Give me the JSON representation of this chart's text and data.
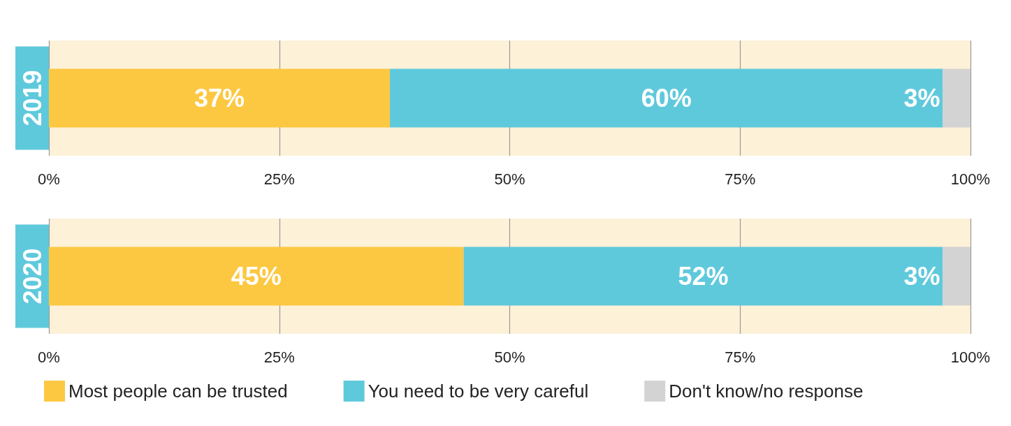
{
  "chart_data": [
    {
      "type": "bar",
      "orientation": "horizontal",
      "stacked": true,
      "categories": [
        "2019"
      ],
      "xlim": [
        0,
        100
      ],
      "xticks": [
        {
          "value": 0,
          "label": "0%"
        },
        {
          "value": 25,
          "label": "25%"
        },
        {
          "value": 50,
          "label": "50%"
        },
        {
          "value": 75,
          "label": "75%"
        },
        {
          "value": 100,
          "label": "100%"
        }
      ],
      "grid": "x",
      "legend": false,
      "series": [
        {
          "color": "#fdc841",
          "values": [
            37
          ],
          "value_labels": [
            "37%"
          ]
        },
        {
          "color": "#5fc9dc",
          "values": [
            60
          ],
          "value_labels": [
            "60%"
          ]
        },
        {
          "color": "#d3d3d3",
          "values": [
            3
          ],
          "value_labels": [
            "3%"
          ]
        }
      ]
    },
    {
      "type": "bar",
      "orientation": "horizontal",
      "stacked": true,
      "categories": [
        "2020"
      ],
      "xlim": [
        0,
        100
      ],
      "xticks": [
        {
          "value": 0,
          "label": "0%"
        },
        {
          "value": 25,
          "label": "25%"
        },
        {
          "value": 50,
          "label": "50%"
        },
        {
          "value": 75,
          "label": "75%"
        },
        {
          "value": 100,
          "label": "100%"
        }
      ],
      "grid": "x",
      "legend": "bottom",
      "series": [
        {
          "name": "Most people can be trusted",
          "color": "#fdc841",
          "values": [
            45
          ],
          "value_labels": [
            "45%"
          ]
        },
        {
          "name": "You need to be very careful",
          "color": "#5fc9dc",
          "values": [
            52
          ],
          "value_labels": [
            "52%"
          ]
        },
        {
          "name": "Don't know/no response",
          "color": "#d3d3d3",
          "values": [
            3
          ],
          "value_labels": [
            "3%"
          ]
        }
      ]
    }
  ]
}
